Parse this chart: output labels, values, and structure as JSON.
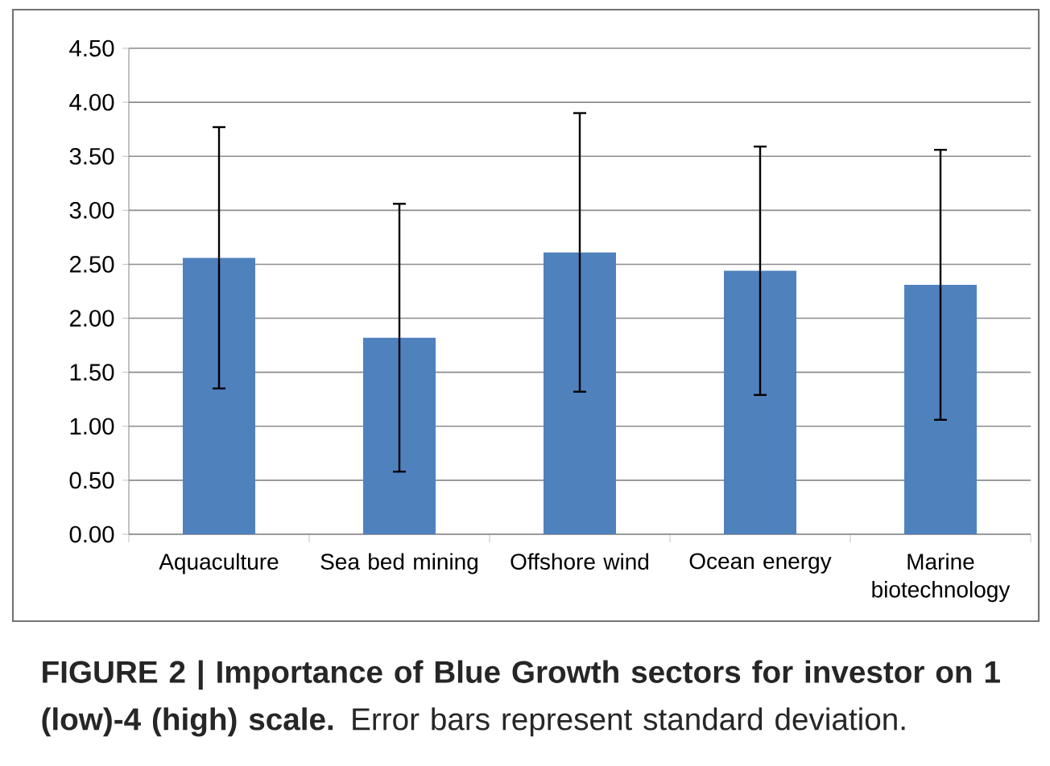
{
  "chart_data": {
    "type": "bar",
    "categories": [
      "Aquaculture",
      "Sea bed mining",
      "Offshore wind",
      "Ocean energy",
      "Marine biotechnology"
    ],
    "values": [
      2.56,
      1.82,
      2.61,
      2.44,
      2.31
    ],
    "errors": [
      1.21,
      1.24,
      1.29,
      1.15,
      1.25
    ],
    "color": "#4f81bd",
    "ylim": [
      0,
      4.5
    ],
    "yticks": [
      {
        "value": 0,
        "label": "0.00"
      },
      {
        "value": 0.5,
        "label": "0.50"
      },
      {
        "value": 1,
        "label": "1.00"
      },
      {
        "value": 1.5,
        "label": "1.50"
      },
      {
        "value": 2,
        "label": "2.00"
      },
      {
        "value": 2.5,
        "label": "2.50"
      },
      {
        "value": 3,
        "label": "3.00"
      },
      {
        "value": 3.5,
        "label": "3.50"
      },
      {
        "value": 4,
        "label": "4.00"
      },
      {
        "value": 4.5,
        "label": "4.50"
      }
    ],
    "grid": "y",
    "annotations": [
      "**FIGURE 2 | Importance of Blue Growth sectors for investor on 1 (low)-4 (high) scale.** Error bars represent standard deviation."
    ]
  }
}
